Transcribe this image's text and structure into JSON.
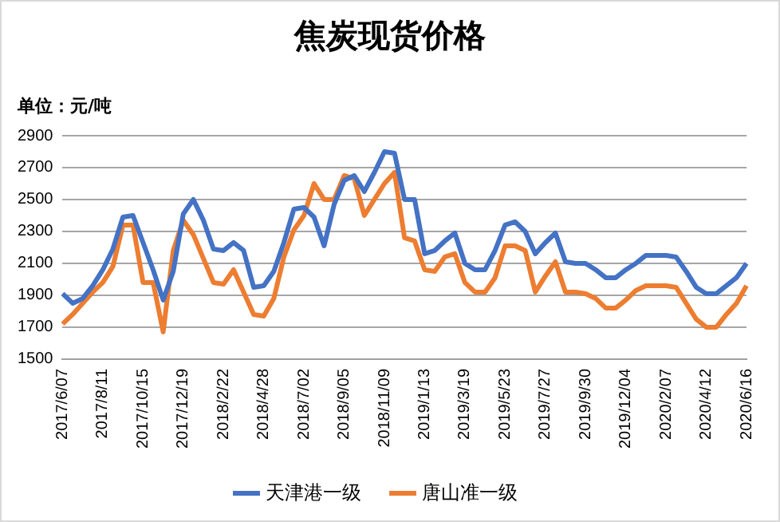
{
  "chart_data": {
    "type": "line",
    "title": "焦炭现货价格",
    "annotations": [
      "单位：元/吨"
    ],
    "categories": [
      "2017/6/07",
      null,
      null,
      null,
      "2017/8/11",
      null,
      null,
      null,
      "2017/10/15",
      null,
      null,
      null,
      "2017/12/19",
      null,
      null,
      null,
      "2018/2/22",
      null,
      null,
      null,
      "2018/4/28",
      null,
      null,
      null,
      "2018/7/02",
      null,
      null,
      null,
      "2018/9/05",
      null,
      null,
      null,
      "2018/11/09",
      null,
      null,
      null,
      "2019/1/13",
      null,
      null,
      null,
      "2019/3/19",
      null,
      null,
      null,
      "2019/5/23",
      null,
      null,
      null,
      "2019/7/27",
      null,
      null,
      null,
      "2019/9/30",
      null,
      null,
      null,
      "2019/12/04",
      null,
      null,
      null,
      "2020/2/07",
      null,
      null,
      null,
      "2020/4/12",
      null,
      null,
      null,
      "2020/6/16"
    ],
    "series": [
      {
        "name": "天津港一级",
        "color": "#4472c4",
        "values": [
          1910,
          1850,
          1880,
          1960,
          2060,
          2190,
          2390,
          2400,
          2230,
          2060,
          1870,
          2050,
          2410,
          2500,
          2370,
          2190,
          2180,
          2230,
          2180,
          1950,
          1960,
          2050,
          2230,
          2440,
          2450,
          2390,
          2210,
          2470,
          2620,
          2650,
          2550,
          2670,
          2800,
          2790,
          2500,
          2500,
          2160,
          2180,
          2240,
          2290,
          2100,
          2060,
          2060,
          2180,
          2340,
          2360,
          2300,
          2160,
          2230,
          2290,
          2110,
          2100,
          2100,
          2060,
          2010,
          2010,
          2060,
          2100,
          2150,
          2150,
          2150,
          2140,
          2050,
          1950,
          1910,
          1910,
          1960,
          2010,
          2100
        ]
      },
      {
        "name": "唐山准一级",
        "color": "#ed7d31",
        "values": [
          1720,
          1780,
          1850,
          1920,
          1980,
          2080,
          2340,
          2340,
          1980,
          1980,
          1670,
          2180,
          2370,
          2280,
          2130,
          1980,
          1970,
          2060,
          1920,
          1780,
          1770,
          1880,
          2140,
          2310,
          2400,
          2600,
          2500,
          2500,
          2650,
          2630,
          2400,
          2500,
          2600,
          2670,
          2260,
          2240,
          2060,
          2050,
          2140,
          2160,
          1980,
          1920,
          1920,
          2010,
          2210,
          2210,
          2180,
          1920,
          2020,
          2110,
          1920,
          1920,
          1910,
          1880,
          1820,
          1820,
          1870,
          1930,
          1960,
          1960,
          1960,
          1950,
          1850,
          1750,
          1700,
          1700,
          1780,
          1850,
          1960
        ]
      }
    ],
    "ylim": [
      1500,
      2900
    ],
    "yticks": [
      1500,
      1700,
      1900,
      2100,
      2300,
      2500,
      2700,
      2900
    ],
    "grid": "y",
    "legend": "bottom",
    "marker": "none",
    "line_style": "solid"
  }
}
